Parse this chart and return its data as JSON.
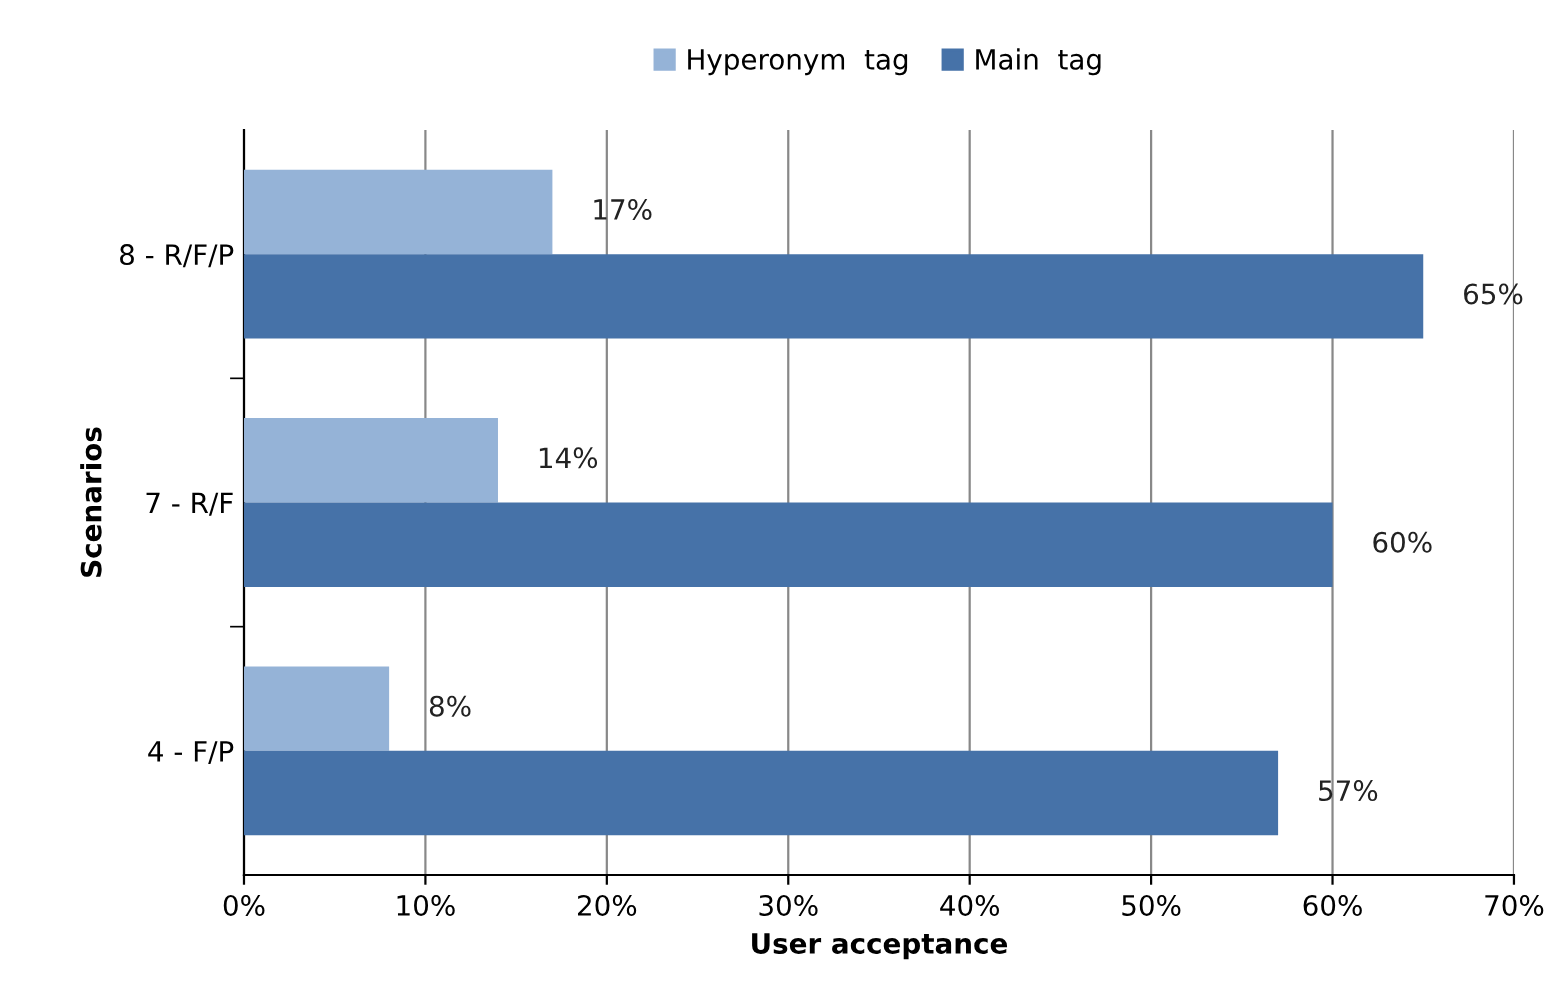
{
  "chart_data": {
    "type": "bar",
    "orientation": "horizontal",
    "xlabel": "User acceptance",
    "ylabel": "Scenarios",
    "categories": [
      "8 - R/F/P",
      "7 - R/F",
      "4 - F/P"
    ],
    "series": [
      {
        "name": "Hyperonym  tag",
        "color": "#95b3d7",
        "values": [
          17,
          14,
          8
        ],
        "value_labels": [
          "17%",
          "14%",
          "8%"
        ]
      },
      {
        "name": "Main  tag",
        "color": "#4672a8",
        "values": [
          65,
          60,
          57
        ],
        "value_labels": [
          "65%",
          "60%",
          "57%"
        ]
      }
    ],
    "xlim": [
      0,
      70
    ],
    "xticks": [
      {
        "value": 0,
        "label": "0%"
      },
      {
        "value": 10,
        "label": "10%"
      },
      {
        "value": 20,
        "label": "20%"
      },
      {
        "value": 30,
        "label": "30%"
      },
      {
        "value": 40,
        "label": "40%"
      },
      {
        "value": 50,
        "label": "50%"
      },
      {
        "value": 60,
        "label": "60%"
      },
      {
        "value": 70,
        "label": "70%"
      }
    ],
    "grid": "x",
    "legend": "top"
  }
}
